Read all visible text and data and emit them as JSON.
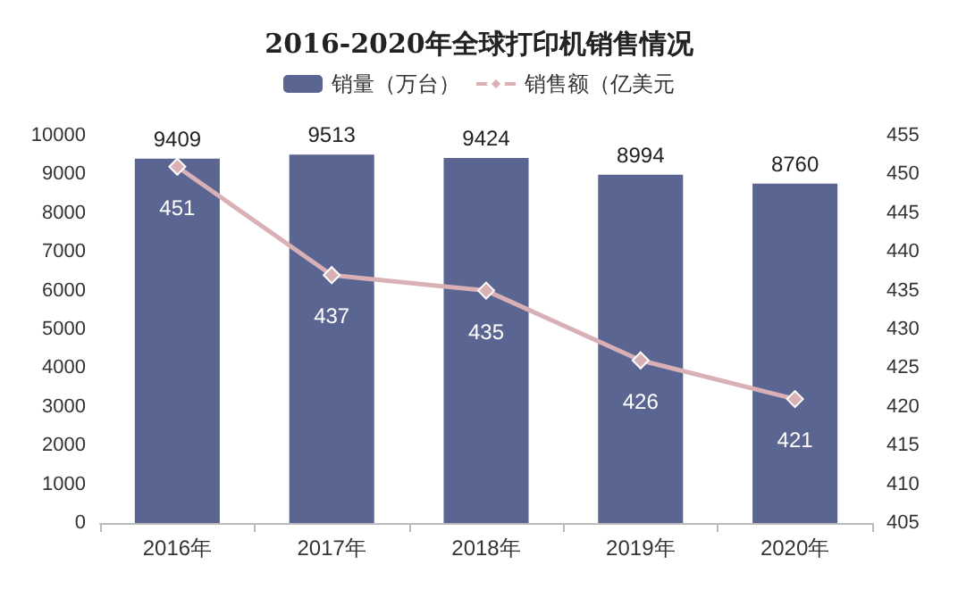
{
  "chart_data": {
    "type": "bar",
    "title": "2016-2020年全球打印机销售情况",
    "categories": [
      "2016年",
      "2017年",
      "2018年",
      "2019年",
      "2020年"
    ],
    "series": [
      {
        "name": "销量（万台）",
        "color": "#5b6591",
        "values": [
          9409,
          9513,
          9424,
          8994,
          8760
        ]
      },
      {
        "name": "销售额（亿美元",
        "type": "line",
        "axis": "y2",
        "color": "#d8b0b6",
        "marker": "diamond",
        "values": [
          451,
          437,
          435,
          426,
          421
        ]
      }
    ],
    "ylim": [
      0,
      10000
    ],
    "yticks": [
      0,
      1000,
      2000,
      3000,
      4000,
      5000,
      6000,
      7000,
      8000,
      9000,
      10000
    ],
    "y2lim": [
      405,
      455
    ],
    "y2ticks": [
      405,
      410,
      415,
      420,
      425,
      430,
      435,
      440,
      445,
      450,
      455
    ],
    "data_labels": true,
    "grid": false,
    "legend": "top"
  }
}
